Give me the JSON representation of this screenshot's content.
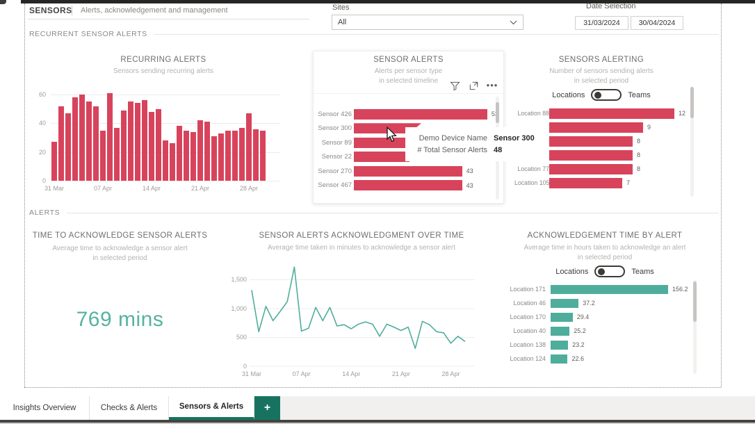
{
  "header": {
    "title": "SENSORS",
    "subtitle": "Alerts, acknowledgement and management",
    "sites_label": "Sites",
    "sites_value": "All",
    "date_label": "Date Selection",
    "date_from": "31/03/2024",
    "date_to": "30/04/2024"
  },
  "sections": {
    "recurrent_label": "RECURRENT SENSOR ALERTS",
    "alerts_label": "ALERTS"
  },
  "toggle": {
    "left": "Locations",
    "right": "Teams",
    "selected": "Locations"
  },
  "tooltip": {
    "field1_label": "Demo Device Name",
    "field1_value": "Sensor 300",
    "field2_label": "# Total Sensor Alerts",
    "field2_value": "48"
  },
  "card_actions": [
    "filter-icon",
    "focus-mode-icon",
    "more-options-icon"
  ],
  "colors": {
    "red": "#d8435c",
    "teal": "#4fad9c",
    "teal_dark": "#17735f",
    "kpi_text": "#56b2a1"
  },
  "tabs": {
    "items": [
      {
        "label": "Insights Overview",
        "active": false
      },
      {
        "label": "Checks & Alerts",
        "active": false
      },
      {
        "label": "Sensors & Alerts",
        "active": true
      }
    ],
    "add_label": "+"
  },
  "chart_data": [
    {
      "id": "recurring-alerts",
      "type": "bar",
      "title": "RECURRING ALERTS",
      "subtitle_lines": [
        "Sensors sending recurring alerts"
      ],
      "x_ticks": [
        "31 Mar",
        "07 Apr",
        "14 Apr",
        "21 Apr",
        "28 Apr"
      ],
      "y_ticks": [
        60,
        40,
        20,
        0
      ],
      "ylim": [
        0,
        65
      ],
      "values": [
        27,
        52,
        47,
        58,
        60,
        55,
        52,
        35,
        61,
        37,
        49,
        55,
        54,
        56,
        48,
        50,
        28,
        26,
        38,
        35,
        34,
        42,
        41,
        31,
        33,
        35,
        35,
        37,
        47,
        36,
        35
      ],
      "color": "#d8435c",
      "grid": true
    },
    {
      "id": "sensor-alerts",
      "type": "bar_horizontal",
      "title": "SENSOR ALERTS",
      "subtitle_lines": [
        "Alerts per sensor type",
        "in selected timeline"
      ],
      "categories": [
        "Sensor 426",
        "Sensor 300",
        "Sensor 89",
        "Sensor 22",
        "Sensor 270",
        "Sensor 467"
      ],
      "values": [
        53,
        48,
        null,
        null,
        43,
        43
      ],
      "value_labels": [
        "53",
        "",
        "",
        "",
        "43",
        "43"
      ],
      "color": "#d8435c"
    },
    {
      "id": "sensors-alerting",
      "type": "bar_horizontal",
      "title": "SENSORS ALERTING",
      "subtitle_lines": [
        "Number of sensors sending alerts",
        "in selected period"
      ],
      "has_toggle": true,
      "categories": [
        "Location 88",
        "",
        "",
        "",
        "Location 77",
        "Location 105"
      ],
      "values": [
        12,
        9,
        8,
        8,
        8,
        7
      ],
      "color": "#d8435c"
    },
    {
      "id": "time-to-acknowledge",
      "type": "kpi",
      "title": "TIME TO ACKNOWLEDGE SENSOR ALERTS",
      "subtitle_lines": [
        "Average time to acknowledge a sensor alert",
        "in selected period"
      ],
      "value": "769 mins",
      "color": "#56b2a1"
    },
    {
      "id": "ack-over-time",
      "type": "line",
      "title": "SENSOR ALERTS ACKNOWLEDGMENT OVER TIME",
      "subtitle_lines": [
        "Average time taken in minutes to acknowledge a sensor alert"
      ],
      "x_ticks": [
        "31 Mar",
        "07 Apr",
        "14 Apr",
        "21 Apr",
        "28 Apr"
      ],
      "y_ticks": [
        "1,500",
        "1,000",
        "500",
        "0"
      ],
      "ylim": [
        0,
        1800
      ],
      "values": [
        1320,
        600,
        1040,
        790,
        950,
        1120,
        1720,
        610,
        660,
        1020,
        790,
        1020,
        700,
        720,
        650,
        730,
        770,
        730,
        520,
        730,
        680,
        620,
        680,
        310,
        780,
        720,
        600,
        580,
        400,
        520,
        430
      ],
      "color": "#4fad9c",
      "grid": true
    },
    {
      "id": "ack-time-by-alert",
      "type": "bar_horizontal",
      "title": "ACKNOWLEDGEMENT TIME BY ALERT",
      "subtitle_lines": [
        "Average time in hours taken to acknowledge an alert",
        "in selected period"
      ],
      "has_toggle": true,
      "categories": [
        "Location 171",
        "Location 46",
        "Location 170",
        "Location 40",
        "Location 138",
        "Location 124"
      ],
      "values": [
        156.2,
        37.2,
        29.4,
        25.2,
        23.2,
        22.6
      ],
      "color": "#4fad9c"
    }
  ]
}
